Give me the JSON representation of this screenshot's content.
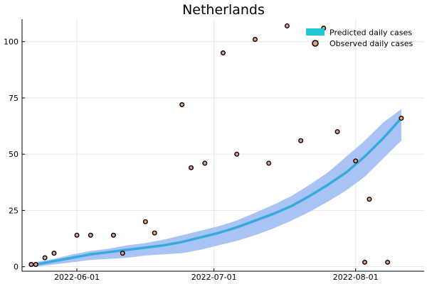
{
  "chart_data": {
    "type": "line",
    "title": "Netherlands",
    "xlabel": "",
    "ylabel": "",
    "x_range": [
      "2022-05-20",
      "2022-08-16"
    ],
    "ylim": [
      -2,
      110
    ],
    "grid": true,
    "legend_position": "top-right",
    "x_ticks": [
      "2022-06-01",
      "2022-07-01",
      "2022-08-01"
    ],
    "y_ticks": [
      0,
      25,
      50,
      75,
      100
    ],
    "legend": {
      "predicted_label": "Predicted daily cases",
      "observed_label": "Observed daily cases"
    },
    "colors": {
      "predicted_line": "#35ABDB",
      "predicted_band": "#A9C3F4",
      "legend_predicted": "#1FC8D2",
      "observed_fill": "#E8A17C",
      "observed_edge": "#000000"
    },
    "series": [
      {
        "name": "Predicted daily cases",
        "x": [
          "2022-05-23",
          "2022-05-27",
          "2022-05-31",
          "2022-06-04",
          "2022-06-08",
          "2022-06-12",
          "2022-06-16",
          "2022-06-20",
          "2022-06-24",
          "2022-06-28",
          "2022-07-02",
          "2022-07-06",
          "2022-07-10",
          "2022-07-14",
          "2022-07-18",
          "2022-07-22",
          "2022-07-26",
          "2022-07-30",
          "2022-08-03",
          "2022-08-07",
          "2022-08-11"
        ],
        "y": [
          1,
          2.5,
          4,
          5.5,
          6.5,
          7.5,
          8.5,
          9.5,
          11,
          13,
          15,
          17.5,
          20.5,
          23.5,
          27,
          31.5,
          36.5,
          42,
          49,
          57,
          66
        ],
        "lower": [
          0,
          1,
          2,
          3,
          3.5,
          4,
          5,
          5.5,
          6,
          7.5,
          9.5,
          11.5,
          14,
          17,
          20.5,
          24.5,
          29,
          34,
          40,
          48,
          56
        ],
        "upper": [
          2,
          3.5,
          5.5,
          7,
          8,
          9.5,
          10.5,
          12,
          14,
          16,
          18,
          20.5,
          24,
          27.5,
          31.5,
          36.5,
          42,
          49,
          56,
          64,
          70
        ]
      },
      {
        "name": "Observed daily cases",
        "x": [
          "2022-05-22",
          "2022-05-23",
          "2022-05-25",
          "2022-05-27",
          "2022-06-01",
          "2022-06-04",
          "2022-06-09",
          "2022-06-11",
          "2022-06-16",
          "2022-06-18",
          "2022-06-24",
          "2022-06-26",
          "2022-06-29",
          "2022-07-03",
          "2022-07-06",
          "2022-07-10",
          "2022-07-13",
          "2022-07-17",
          "2022-07-20",
          "2022-07-25",
          "2022-07-28",
          "2022-08-01",
          "2022-08-03",
          "2022-08-04",
          "2022-08-08",
          "2022-08-11"
        ],
        "y": [
          1,
          1,
          4,
          6,
          14,
          14,
          14,
          6,
          20,
          15,
          72,
          44,
          46,
          95,
          50,
          101,
          46,
          107,
          56,
          106,
          60,
          47,
          2,
          30,
          2,
          66
        ]
      }
    ]
  }
}
